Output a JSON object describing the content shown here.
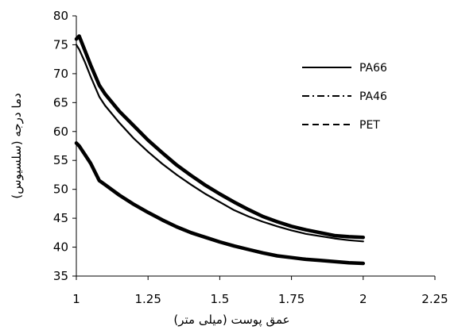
{
  "chart_data": {
    "type": "line",
    "title": "",
    "xlabel": "عمق پوست (میلی متر)",
    "ylabel": "دما درجه (سلسیوس)",
    "xlim": [
      1,
      2.25
    ],
    "ylim": [
      35,
      80
    ],
    "x_ticks": [
      "1",
      "1.25",
      "1.5",
      "1.75",
      "2",
      "2.25"
    ],
    "y_ticks": [
      "35",
      "40",
      "45",
      "50",
      "55",
      "60",
      "65",
      "70",
      "75",
      "80"
    ],
    "grid": false,
    "legend_position": "right",
    "series": [
      {
        "name": "PA66",
        "line_style": "solid",
        "color": "#000000",
        "x": [
          1.0,
          1.01,
          1.03,
          1.05,
          1.08,
          1.1,
          1.15,
          1.2,
          1.25,
          1.3,
          1.35,
          1.4,
          1.45,
          1.5,
          1.55,
          1.6,
          1.65,
          1.7,
          1.75,
          1.8,
          1.85,
          1.9,
          1.95,
          2.0
        ],
        "y": [
          75.0,
          74.2,
          72.0,
          69.5,
          66.0,
          64.5,
          61.5,
          58.8,
          56.5,
          54.4,
          52.5,
          50.8,
          49.2,
          47.8,
          46.4,
          45.3,
          44.4,
          43.6,
          42.9,
          42.3,
          41.9,
          41.5,
          41.2,
          41.0
        ]
      },
      {
        "name": "PA46",
        "line_style": "dash-dot",
        "color": "#000000",
        "x": [
          1.0,
          1.01,
          1.03,
          1.05,
          1.08,
          1.1,
          1.15,
          1.2,
          1.25,
          1.3,
          1.35,
          1.4,
          1.45,
          1.5,
          1.55,
          1.6,
          1.65,
          1.7,
          1.75,
          1.8,
          1.85,
          1.9,
          1.95,
          2.0
        ],
        "y": [
          76.0,
          76.5,
          74.0,
          71.5,
          68.0,
          66.5,
          63.5,
          61.0,
          58.5,
          56.3,
          54.2,
          52.4,
          50.7,
          49.2,
          47.8,
          46.5,
          45.3,
          44.4,
          43.6,
          43.0,
          42.5,
          42.0,
          41.8,
          41.7
        ]
      },
      {
        "name": "PET",
        "line_style": "dashed",
        "color": "#000000",
        "x": [
          1.0,
          1.01,
          1.03,
          1.05,
          1.08,
          1.1,
          1.15,
          1.2,
          1.25,
          1.3,
          1.35,
          1.4,
          1.45,
          1.5,
          1.55,
          1.6,
          1.65,
          1.7,
          1.75,
          1.8,
          1.85,
          1.9,
          1.95,
          2.0
        ],
        "y": [
          58.0,
          57.5,
          56.0,
          54.5,
          51.5,
          50.8,
          49.0,
          47.4,
          46.0,
          44.7,
          43.5,
          42.5,
          41.7,
          40.9,
          40.2,
          39.6,
          39.0,
          38.5,
          38.2,
          37.9,
          37.7,
          37.5,
          37.3,
          37.2
        ]
      }
    ]
  }
}
